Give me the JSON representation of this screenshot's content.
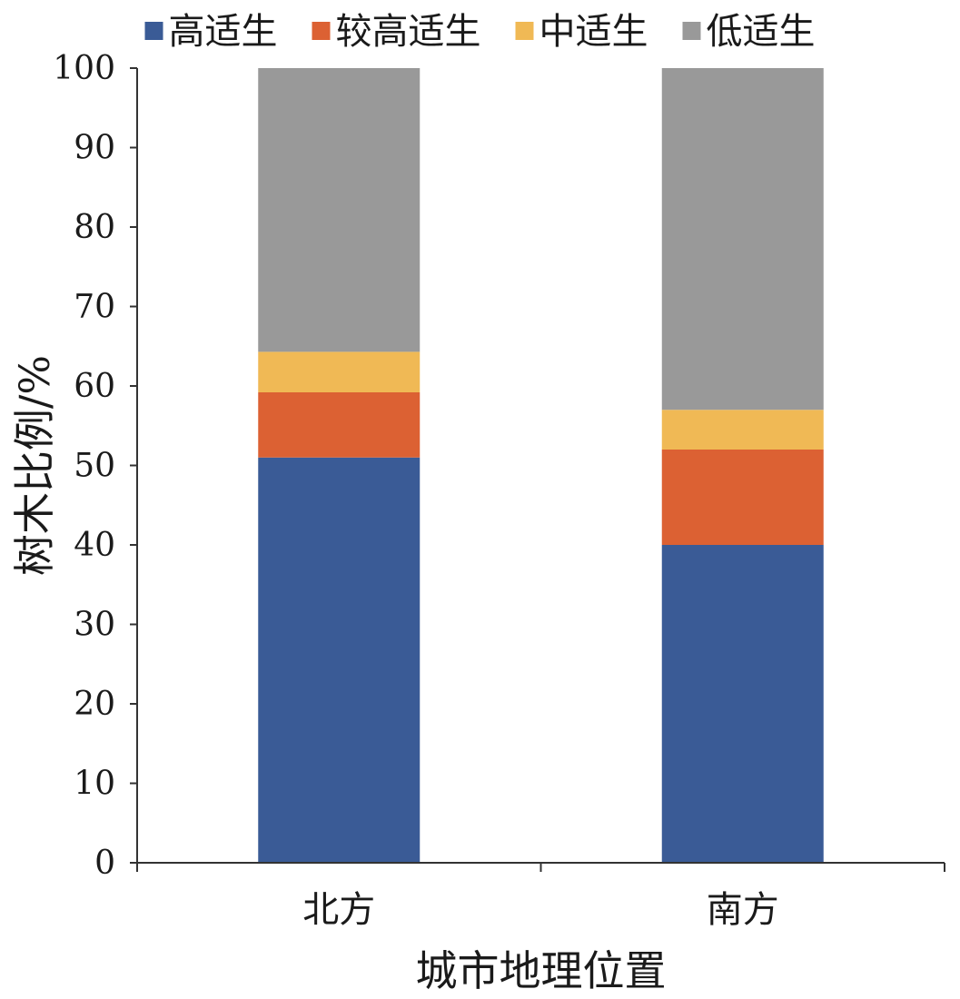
{
  "chart_data": {
    "type": "bar",
    "stacked": true,
    "title": "",
    "xlabel": "城市地理位置",
    "ylabel": "树木比例/%",
    "ylim": [
      0,
      100
    ],
    "yticks": [
      "0",
      "10",
      "20",
      "30",
      "40",
      "50",
      "60",
      "70",
      "80",
      "90",
      "100"
    ],
    "categories": [
      "北方",
      "南方"
    ],
    "legend_position": "top",
    "grid": false,
    "series": [
      {
        "name": "高适生",
        "color": "#3a5b96",
        "values": [
          51,
          40
        ]
      },
      {
        "name": "较高适生",
        "color": "#dc6133",
        "values": [
          8.2,
          12
        ]
      },
      {
        "name": "中适生",
        "color": "#f0b955",
        "values": [
          5.1,
          5
        ]
      },
      {
        "name": "低适生",
        "color": "#999999",
        "values": [
          35.7,
          43
        ]
      }
    ]
  }
}
